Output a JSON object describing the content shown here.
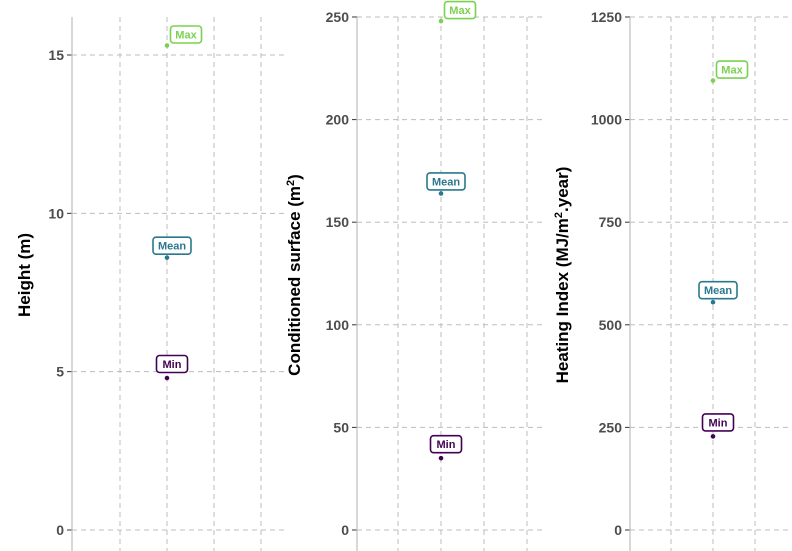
{
  "chart_data": [
    {
      "type": "scatter",
      "ylabel": "Height (m)",
      "ylim": [
        0,
        16.2
      ],
      "yticks": [
        0,
        5,
        10,
        15
      ],
      "tick_labels": [
        "0",
        "5",
        "10",
        "15"
      ],
      "grid": true,
      "points": [
        {
          "label": "Min",
          "value": 4.8,
          "color": "#440154"
        },
        {
          "label": "Mean",
          "value": 8.6,
          "color": "#2a788e"
        },
        {
          "label": "Max",
          "value": 15.3,
          "color": "#7ad151"
        }
      ]
    },
    {
      "type": "scatter",
      "ylabel": "Conditioned surface (m",
      "ylabel_sup": "2",
      "ylabel_end": ")",
      "ylim": [
        0,
        250
      ],
      "yticks": [
        0,
        50,
        100,
        150,
        200,
        250
      ],
      "tick_labels": [
        "0",
        "50",
        "100",
        "150",
        "200",
        "250"
      ],
      "grid": true,
      "points": [
        {
          "label": "Min",
          "value": 35,
          "color": "#440154"
        },
        {
          "label": "Mean",
          "value": 164,
          "color": "#2a788e"
        },
        {
          "label": "Max",
          "value": 248,
          "color": "#7ad151"
        }
      ]
    },
    {
      "type": "scatter",
      "ylabel": "Heating Index (MJ/m",
      "ylabel_sup": "2",
      "ylabel_end": ".year)",
      "ylim": [
        0,
        1250
      ],
      "yticks": [
        0,
        250,
        500,
        750,
        1000,
        1250
      ],
      "tick_labels": [
        "0",
        "250",
        "500",
        "750",
        "1000",
        "1250"
      ],
      "grid": true,
      "points": [
        {
          "label": "Min",
          "value": 228,
          "color": "#440154"
        },
        {
          "label": "Mean",
          "value": 555,
          "color": "#2a788e"
        },
        {
          "label": "Max",
          "value": 1095,
          "color": "#7ad151"
        }
      ]
    }
  ]
}
